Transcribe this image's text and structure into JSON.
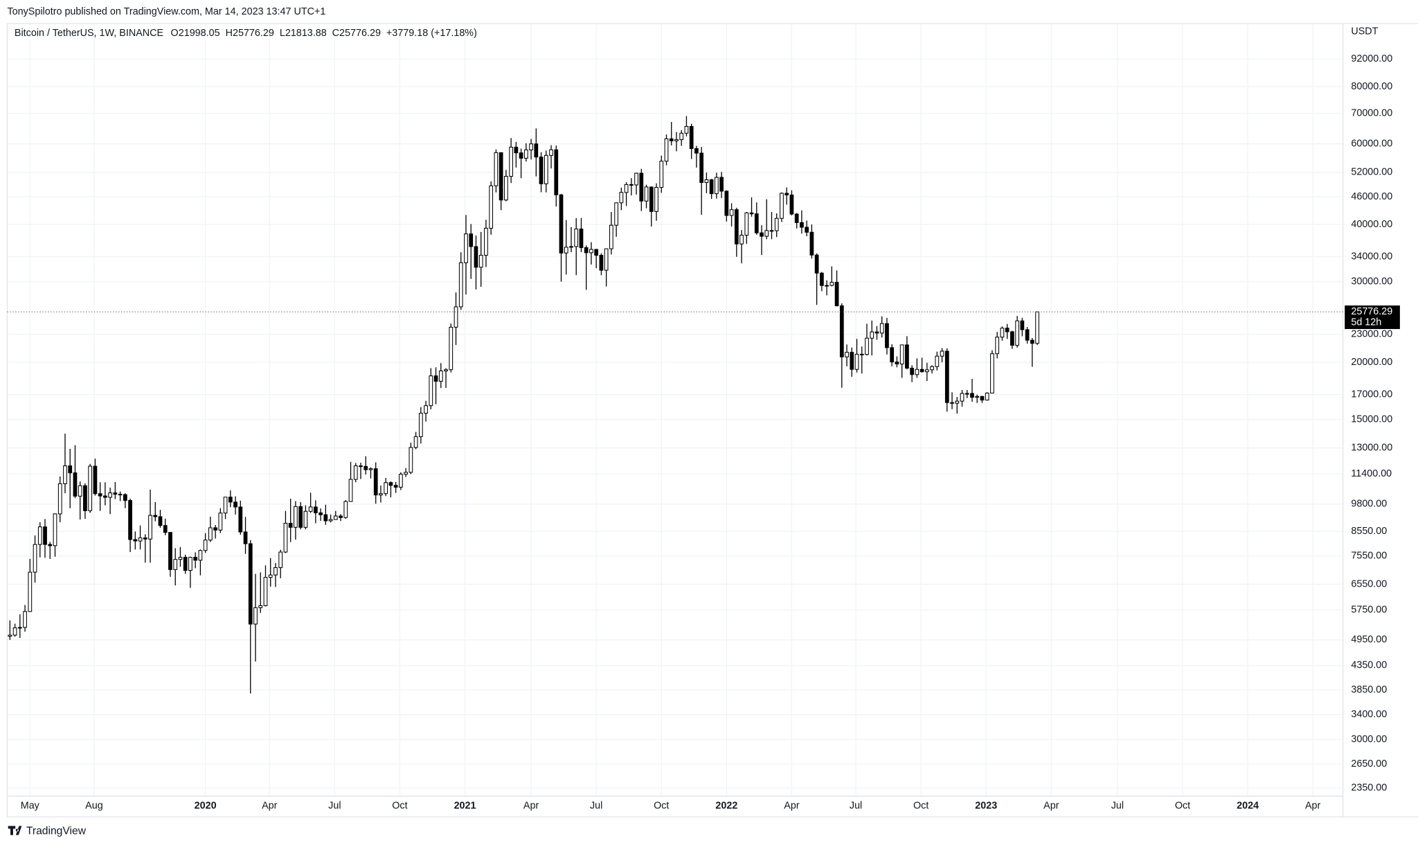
{
  "header": {
    "publisher": "TonySpilotro published on TradingView.com, Mar 14, 2023 13:47 UTC+1"
  },
  "footer": {
    "brand": "TradingView"
  },
  "chart_data": {
    "type": "candlestick",
    "symbol": "Bitcoin / TetherUS, 1W, BINANCE",
    "ohlc_label": "O21998.05  H25776.29  L21813.88  C25776.29  +3779.18 (+17.18%)",
    "currency": "USDT",
    "countdown": "5d 12h",
    "log_scale": true,
    "grid": true,
    "up_color": "#ffffff",
    "down_color": "#000000",
    "outline_color": "#000000",
    "ylim": [
      2256,
      108900
    ],
    "yticks": [
      {
        "value": 92000,
        "label": "92000.00"
      },
      {
        "value": 80000,
        "label": "80000.00"
      },
      {
        "value": 70000,
        "label": "70000.00"
      },
      {
        "value": 60000,
        "label": "60000.00"
      },
      {
        "value": 52000,
        "label": "52000.00"
      },
      {
        "value": 46000,
        "label": "46000.00"
      },
      {
        "value": 40000,
        "label": "40000.00"
      },
      {
        "value": 34000,
        "label": "34000.00"
      },
      {
        "value": 30000,
        "label": "30000.00"
      },
      {
        "value": 23000,
        "label": "23000.00"
      },
      {
        "value": 20000,
        "label": "20000.00"
      },
      {
        "value": 17000,
        "label": "17000.00"
      },
      {
        "value": 15000,
        "label": "15000.00"
      },
      {
        "value": 13000,
        "label": "13000.00"
      },
      {
        "value": 11400,
        "label": "11400.00"
      },
      {
        "value": 9800,
        "label": "9800.00"
      },
      {
        "value": 8550,
        "label": "8550.00"
      },
      {
        "value": 7550,
        "label": "7550.00"
      },
      {
        "value": 6550,
        "label": "6550.00"
      },
      {
        "value": 5750,
        "label": "5750.00"
      },
      {
        "value": 4950,
        "label": "4950.00"
      },
      {
        "value": 4350,
        "label": "4350.00"
      },
      {
        "value": 3850,
        "label": "3850.00"
      },
      {
        "value": 3400,
        "label": "3400.00"
      },
      {
        "value": 3000,
        "label": "3000.00"
      },
      {
        "value": 2650,
        "label": "2650.00"
      },
      {
        "value": 2350,
        "label": "2350.00"
      }
    ],
    "xlim": [
      -0.54,
      266
    ],
    "xticks": [
      {
        "value": 4,
        "label": "May"
      },
      {
        "value": 16.8,
        "label": "Aug"
      },
      {
        "value": 39,
        "label": "2020"
      },
      {
        "value": 51.8,
        "label": "Apr"
      },
      {
        "value": 64.8,
        "label": "Jul"
      },
      {
        "value": 77.8,
        "label": "Oct"
      },
      {
        "value": 90.8,
        "label": "2021"
      },
      {
        "value": 104,
        "label": "Apr"
      },
      {
        "value": 117,
        "label": "Jul"
      },
      {
        "value": 130,
        "label": "Oct"
      },
      {
        "value": 143,
        "label": "2022"
      },
      {
        "value": 156,
        "label": "Apr"
      },
      {
        "value": 168.8,
        "label": "Jul"
      },
      {
        "value": 181.8,
        "label": "Oct"
      },
      {
        "value": 194.8,
        "label": "2023"
      },
      {
        "value": 207.8,
        "label": "Apr"
      },
      {
        "value": 221,
        "label": "Jul"
      },
      {
        "value": 234,
        "label": "Oct"
      },
      {
        "value": 247,
        "label": "2024"
      },
      {
        "value": 260,
        "label": "Apr"
      }
    ],
    "candles": [
      [
        5040,
        5460,
        4950,
        5070
      ],
      [
        5070,
        5370,
        5030,
        5260
      ],
      [
        5260,
        5630,
        5000,
        5270
      ],
      [
        5270,
        5900,
        5160,
        5710
      ],
      [
        5710,
        7440,
        5700,
        6960
      ],
      [
        6960,
        8370,
        6600,
        8000
      ],
      [
        8000,
        8950,
        7500,
        8740
      ],
      [
        8740,
        9090,
        7480,
        8000
      ],
      [
        8000,
        8100,
        7440,
        7950
      ],
      [
        7950,
        9350,
        7520,
        9330
      ],
      [
        9330,
        11260,
        8950,
        10860
      ],
      [
        10860,
        13970,
        10350,
        11880
      ],
      [
        11880,
        12940,
        9600,
        11470
      ],
      [
        11470,
        13180,
        10100,
        10200
      ],
      [
        10200,
        10980,
        9070,
        10750
      ],
      [
        10750,
        10880,
        9100,
        9480
      ],
      [
        9480,
        12000,
        9380,
        11860
      ],
      [
        11860,
        12320,
        10230,
        10330
      ],
      [
        10330,
        10940,
        9470,
        10210
      ],
      [
        10210,
        10940,
        9740,
        10140
      ],
      [
        10140,
        10650,
        9320,
        10370
      ],
      [
        10370,
        10950,
        10050,
        10300
      ],
      [
        10300,
        10440,
        9950,
        10280
      ],
      [
        10280,
        10350,
        9600,
        9980
      ],
      [
        9980,
        10070,
        7700,
        8200
      ],
      [
        8200,
        8540,
        7800,
        8140
      ],
      [
        8140,
        8800,
        7800,
        8270
      ],
      [
        8270,
        8420,
        7300,
        8220
      ],
      [
        8220,
        10540,
        7300,
        9260
      ],
      [
        9260,
        9900,
        8990,
        9200
      ],
      [
        9200,
        9520,
        8700,
        8800
      ],
      [
        8800,
        9110,
        8380,
        8500
      ],
      [
        8500,
        8500,
        6800,
        7050
      ],
      [
        7050,
        7850,
        6510,
        7420
      ],
      [
        7420,
        7900,
        7150,
        7500
      ],
      [
        7500,
        7600,
        6900,
        7020
      ],
      [
        7020,
        7520,
        6430,
        7500
      ],
      [
        7500,
        7690,
        7100,
        7390
      ],
      [
        7390,
        7800,
        6850,
        7760
      ],
      [
        7760,
        8470,
        7670,
        8180
      ],
      [
        8180,
        9200,
        8100,
        8700
      ],
      [
        8700,
        8820,
        8240,
        8600
      ],
      [
        8600,
        9600,
        8470,
        9370
      ],
      [
        9370,
        10160,
        9090,
        10150
      ],
      [
        10150,
        10500,
        9650,
        9900
      ],
      [
        9900,
        10190,
        9300,
        9660
      ],
      [
        9660,
        9970,
        8400,
        8520
      ],
      [
        8520,
        9190,
        7630,
        8030
      ],
      [
        8030,
        8180,
        3780,
        5360
      ],
      [
        5360,
        6900,
        4440,
        5820
      ],
      [
        5820,
        6950,
        5670,
        5880
      ],
      [
        5880,
        7200,
        5860,
        6780
      ],
      [
        6780,
        7470,
        6470,
        6860
      ],
      [
        6860,
        7290,
        6460,
        7120
      ],
      [
        7120,
        7790,
        6750,
        7700
      ],
      [
        7700,
        9470,
        7660,
        8900
      ],
      [
        8900,
        10070,
        8100,
        8720
      ],
      [
        8720,
        9950,
        8200,
        9680
      ],
      [
        9680,
        9900,
        8630,
        8720
      ],
      [
        8720,
        9740,
        8630,
        9450
      ],
      [
        9450,
        10380,
        9380,
        9660
      ],
      [
        9660,
        9990,
        8900,
        9380
      ],
      [
        9380,
        9590,
        9010,
        9290
      ],
      [
        9290,
        9770,
        8830,
        9010
      ],
      [
        9010,
        9300,
        8940,
        9070
      ],
      [
        9070,
        9470,
        9060,
        9230
      ],
      [
        9230,
        9320,
        9000,
        9160
      ],
      [
        9160,
        10000,
        9100,
        9930
      ],
      [
        9930,
        12120,
        9920,
        11100
      ],
      [
        11100,
        12050,
        10940,
        11880
      ],
      [
        11880,
        12070,
        11120,
        11850
      ],
      [
        11850,
        12470,
        11370,
        11650
      ],
      [
        11650,
        11800,
        11150,
        11710
      ],
      [
        11710,
        12090,
        9820,
        10260
      ],
      [
        10260,
        10760,
        9880,
        10330
      ],
      [
        10330,
        11180,
        10200,
        10920
      ],
      [
        10920,
        10990,
        10140,
        10770
      ],
      [
        10770,
        10950,
        10370,
        10670
      ],
      [
        10670,
        11500,
        10520,
        11390
      ],
      [
        11390,
        11750,
        11230,
        11500
      ],
      [
        11500,
        13350,
        11400,
        13030
      ],
      [
        13030,
        14090,
        12920,
        13760
      ],
      [
        13760,
        15960,
        13290,
        15480
      ],
      [
        15480,
        16480,
        14840,
        16080
      ],
      [
        16080,
        19420,
        15790,
        18680
      ],
      [
        18680,
        19500,
        16200,
        18180
      ],
      [
        18180,
        19920,
        17570,
        19150
      ],
      [
        19150,
        19420,
        17580,
        19270
      ],
      [
        19270,
        24300,
        19000,
        23860
      ],
      [
        23860,
        28420,
        21820,
        26440
      ],
      [
        26440,
        34780,
        26030,
        33000
      ],
      [
        33000,
        41950,
        28130,
        38150
      ],
      [
        38150,
        40100,
        30420,
        35790
      ],
      [
        35790,
        37850,
        28850,
        32260
      ],
      [
        32260,
        38530,
        29240,
        34260
      ],
      [
        34260,
        40950,
        32300,
        39250
      ],
      [
        39250,
        49720,
        37990,
        48580
      ],
      [
        48580,
        58350,
        47000,
        57410
      ],
      [
        57410,
        57500,
        43000,
        45240
      ],
      [
        45240,
        52640,
        44950,
        50970
      ],
      [
        50970,
        61800,
        49270,
        59020
      ],
      [
        59020,
        60600,
        53270,
        57350
      ],
      [
        57350,
        58600,
        50500,
        55820
      ],
      [
        55820,
        60200,
        54900,
        58200
      ],
      [
        58200,
        61500,
        55480,
        60000
      ],
      [
        60000,
        64850,
        50930,
        56150
      ],
      [
        56150,
        57520,
        47040,
        49070
      ],
      [
        49070,
        58000,
        47000,
        56620
      ],
      [
        56620,
        59600,
        53010,
        58240
      ],
      [
        58240,
        59500,
        43800,
        46430
      ],
      [
        46430,
        46660,
        30000,
        34650
      ],
      [
        34650,
        40900,
        31100,
        35680
      ],
      [
        35680,
        39480,
        34800,
        35800
      ],
      [
        35800,
        41300,
        31000,
        39100
      ],
      [
        39100,
        41330,
        34800,
        35600
      ],
      [
        35600,
        36000,
        28800,
        34700
      ],
      [
        34700,
        36600,
        32700,
        35290
      ],
      [
        35290,
        35300,
        32100,
        34260
      ],
      [
        34260,
        34600,
        31000,
        31780
      ],
      [
        31780,
        35400,
        29280,
        35400
      ],
      [
        35400,
        42600,
        34400,
        39850
      ],
      [
        39850,
        44700,
        37600,
        44600
      ],
      [
        44600,
        48140,
        43000,
        47000
      ],
      [
        47000,
        49500,
        43900,
        48900
      ],
      [
        48900,
        50500,
        46300,
        48810
      ],
      [
        48810,
        51900,
        46500,
        51760
      ],
      [
        51760,
        52920,
        42800,
        45000
      ],
      [
        45000,
        48850,
        43400,
        48300
      ],
      [
        48300,
        48400,
        39600,
        42700
      ],
      [
        42700,
        49200,
        40750,
        48200
      ],
      [
        48200,
        56550,
        46900,
        55000
      ],
      [
        55000,
        62900,
        53880,
        61540
      ],
      [
        61540,
        67000,
        59550,
        60900
      ],
      [
        60900,
        63700,
        57800,
        61300
      ],
      [
        61300,
        64270,
        59400,
        63300
      ],
      [
        63300,
        69000,
        62300,
        65500
      ],
      [
        65500,
        66400,
        55600,
        58600
      ],
      [
        58600,
        59400,
        53250,
        57270
      ],
      [
        57270,
        59100,
        42000,
        49400
      ],
      [
        49400,
        51950,
        46800,
        50100
      ],
      [
        50100,
        50300,
        45500,
        46700
      ],
      [
        46700,
        51900,
        45550,
        50700
      ],
      [
        50700,
        52100,
        45700,
        47300
      ],
      [
        47300,
        47500,
        40600,
        41860
      ],
      [
        41860,
        44500,
        39600,
        43100
      ],
      [
        43100,
        43500,
        34000,
        36270
      ],
      [
        36270,
        38900,
        32900,
        37900
      ],
      [
        37900,
        42600,
        36300,
        42400
      ],
      [
        42400,
        45850,
        41600,
        42200
      ],
      [
        42200,
        44700,
        38000,
        38350
      ],
      [
        38350,
        39850,
        34300,
        37700
      ],
      [
        37700,
        45400,
        37150,
        38800
      ],
      [
        38800,
        42600,
        37150,
        38770
      ],
      [
        38770,
        42300,
        37550,
        41250
      ],
      [
        41250,
        47000,
        40500,
        46800
      ],
      [
        46800,
        48200,
        44200,
        46400
      ],
      [
        46400,
        47500,
        41870,
        42150
      ],
      [
        42150,
        42400,
        39200,
        40380
      ],
      [
        40380,
        42950,
        38200,
        39450
      ],
      [
        39450,
        40800,
        37700,
        38470
      ],
      [
        38470,
        40000,
        33700,
        34300
      ],
      [
        34300,
        34600,
        26700,
        31320
      ],
      [
        31320,
        31500,
        28600,
        29430
      ],
      [
        29430,
        30200,
        28000,
        29440
      ],
      [
        29440,
        32400,
        29300,
        29900
      ],
      [
        29900,
        31750,
        26500,
        26570
      ],
      [
        26570,
        26900,
        17600,
        20550
      ],
      [
        20550,
        21870,
        19600,
        21030
      ],
      [
        21030,
        21540,
        18600,
        19300
      ],
      [
        19300,
        22500,
        19000,
        20830
      ],
      [
        20830,
        21650,
        18900,
        20800
      ],
      [
        20800,
        24280,
        20700,
        22580
      ],
      [
        22580,
        24670,
        20700,
        23300
      ],
      [
        23300,
        24000,
        22400,
        23170
      ],
      [
        23170,
        25200,
        22650,
        24300
      ],
      [
        24300,
        25000,
        20800,
        21530
      ],
      [
        21530,
        21900,
        19600,
        20030
      ],
      [
        20030,
        20600,
        19500,
        19830
      ],
      [
        19830,
        21860,
        18500,
        21830
      ],
      [
        21830,
        22800,
        19300,
        19420
      ],
      [
        19420,
        19700,
        18100,
        18800
      ],
      [
        18800,
        20400,
        18500,
        19300
      ],
      [
        19300,
        20470,
        19000,
        19070
      ],
      [
        19070,
        19950,
        18200,
        19260
      ],
      [
        19260,
        19700,
        18900,
        19570
      ],
      [
        19570,
        21100,
        19200,
        20630
      ],
      [
        20630,
        21480,
        20000,
        21150
      ],
      [
        21150,
        21450,
        15600,
        16330
      ],
      [
        16330,
        17200,
        15800,
        16280
      ],
      [
        16280,
        16800,
        15450,
        16450
      ],
      [
        16450,
        17400,
        16000,
        17100
      ],
      [
        17100,
        17400,
        16700,
        17100
      ],
      [
        17100,
        18400,
        16400,
        16770
      ],
      [
        16770,
        17000,
        16300,
        16840
      ],
      [
        16840,
        16900,
        16300,
        16540
      ],
      [
        16540,
        17200,
        16500,
        17130
      ],
      [
        17130,
        21250,
        17100,
        20880
      ],
      [
        20880,
        23300,
        20400,
        22700
      ],
      [
        22700,
        23950,
        22300,
        23750
      ],
      [
        23750,
        24250,
        22500,
        23320
      ],
      [
        23320,
        23440,
        21400,
        21780
      ],
      [
        21780,
        25250,
        21530,
        24630
      ],
      [
        24630,
        25020,
        22800,
        23560
      ],
      [
        23560,
        23890,
        21970,
        22350
      ],
      [
        22350,
        22600,
        19550,
        21998.05
      ],
      [
        21998.05,
        25776.29,
        21813.88,
        25776.29
      ]
    ]
  }
}
